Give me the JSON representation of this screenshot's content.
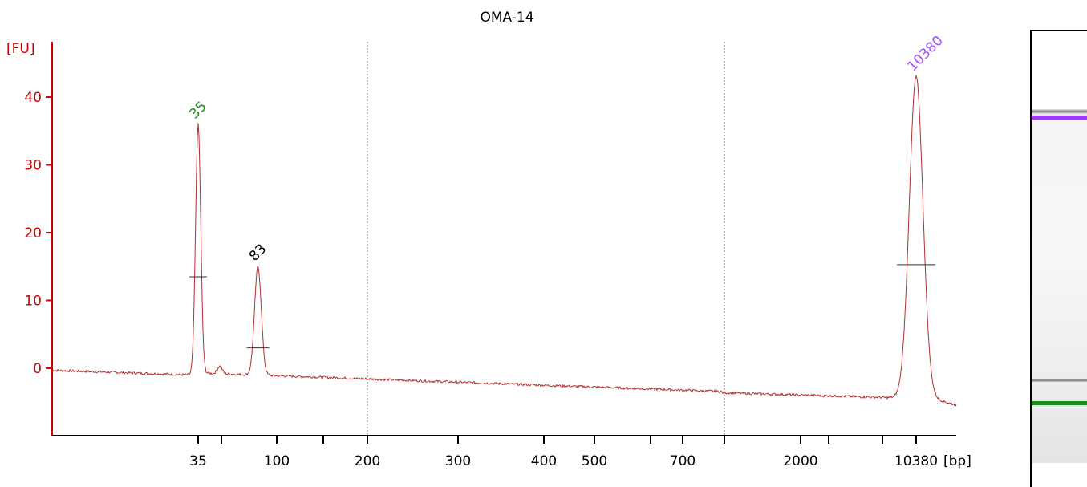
{
  "chart_data": {
    "type": "line",
    "title": "OMA-14",
    "ylabel": "[FU]",
    "xlabel": "[bp]",
    "ylim": [
      -10,
      48
    ],
    "y_ticks": [
      0,
      10,
      20,
      30,
      40
    ],
    "x_ticks": [
      {
        "label": "35",
        "x": 35
      },
      {
        "label": "",
        "x": 50
      },
      {
        "label": "100",
        "x": 100
      },
      {
        "label": "",
        "x": 150
      },
      {
        "label": "200",
        "x": 200
      },
      {
        "label": "300",
        "x": 300
      },
      {
        "label": "400",
        "x": 400
      },
      {
        "label": "500",
        "x": 500
      },
      {
        "label": "",
        "x": 600
      },
      {
        "label": "700",
        "x": 700
      },
      {
        "label": "",
        "x": 1000
      },
      {
        "label": "2000",
        "x": 2000
      },
      {
        "label": "",
        "x": 3000
      },
      {
        "label": "",
        "x": 7000
      },
      {
        "label": "10380",
        "x": 10380
      }
    ],
    "gridlines_x": [
      200,
      1000
    ],
    "peaks": [
      {
        "size_bp": 35,
        "fu": 36,
        "label": "35",
        "color": "#1a8a1a"
      },
      {
        "size_bp": 83,
        "fu": 15,
        "label": "83",
        "color": "#000000"
      },
      {
        "size_bp": 10380,
        "fu": 43,
        "label": "10380",
        "color": "#a64dff"
      }
    ],
    "trace_color": "#b03030",
    "axis_color": "#cc0000"
  },
  "gel": {
    "bands": [
      {
        "name": "upper-marker",
        "color": "#9d3cf0",
        "position": 0.02
      },
      {
        "name": "upper-shadow",
        "color": "#7d7d7d",
        "position": 0.0
      },
      {
        "name": "lower-shadow",
        "color": "#7d7d7d",
        "position": 0.83
      },
      {
        "name": "lower-marker",
        "color": "#1a8a1a",
        "position": 0.85
      }
    ]
  }
}
